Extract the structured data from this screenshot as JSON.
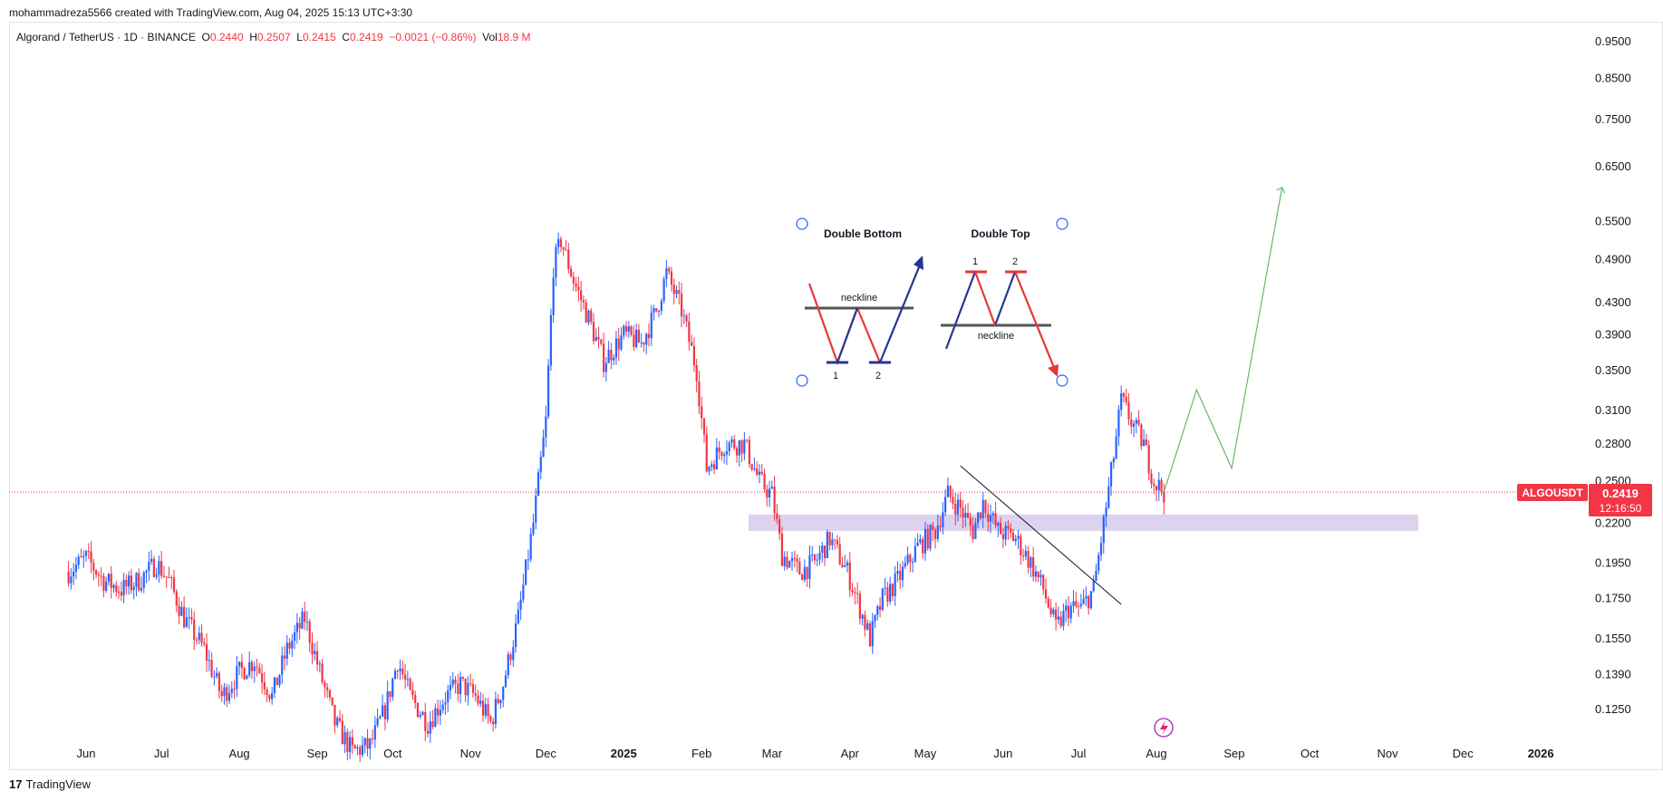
{
  "header": {
    "attribution": "mohammadreza5566 created with TradingView.com, Aug 04, 2025 15:13 UTC+3:30"
  },
  "symbol_bar": {
    "name": "Algorand / TetherUS · 1D · BINANCE",
    "o_label": "O",
    "o_value": "0.2440",
    "h_label": "H",
    "h_value": "0.2507",
    "l_label": "L",
    "l_value": "0.2415",
    "c_label": "C",
    "c_value": "0.2419",
    "change": "−0.0021 (−0.86%)",
    "vol_label": "Vol",
    "vol_value": "18.9 M"
  },
  "footer": {
    "brand": "TradingView",
    "brand_mark": "17"
  },
  "price_tag": {
    "symbol": "ALGOUSDT",
    "price": "0.2419",
    "countdown": "12:16:50"
  },
  "annotations": {
    "double_bottom": {
      "title": "Double Bottom",
      "neckline": "neckline",
      "p1": "1",
      "p2": "2"
    },
    "double_top": {
      "title": "Double Top",
      "neckline": "neckline",
      "p1": "1",
      "p2": "2"
    }
  },
  "colors": {
    "up": "#2962ff",
    "down": "#f23645",
    "zone": "#d1c4e9",
    "projection": "#66bb6a",
    "trendline": "#131722"
  },
  "chart_data": {
    "type": "candlestick",
    "scale": "log",
    "y_ticks": [
      "0.9500",
      "0.8500",
      "0.7500",
      "0.6500",
      "0.5500",
      "0.4900",
      "0.4300",
      "0.3900",
      "0.3500",
      "0.3100",
      "0.2800",
      "0.2500",
      "0.2200",
      "0.1950",
      "0.1750",
      "0.1550",
      "0.1390",
      "0.1250"
    ],
    "x_ticks": [
      "Jun",
      "Jul",
      "Aug",
      "Sep",
      "Oct",
      "Nov",
      "Dec",
      "2025",
      "Feb",
      "Mar",
      "Apr",
      "May",
      "Jun",
      "Jul",
      "Aug",
      "Sep",
      "Oct",
      "Nov",
      "Dec",
      "2026"
    ],
    "last_price": 0.2419,
    "support_zone": [
      0.215,
      0.226
    ],
    "price_path": [
      [
        "2024-05-25",
        0.19
      ],
      [
        "2024-06-01",
        0.198
      ],
      [
        "2024-06-08",
        0.185
      ],
      [
        "2024-06-15",
        0.18
      ],
      [
        "2024-06-22",
        0.185
      ],
      [
        "2024-06-29",
        0.195
      ],
      [
        "2024-07-04",
        0.185
      ],
      [
        "2024-07-10",
        0.165
      ],
      [
        "2024-07-18",
        0.15
      ],
      [
        "2024-07-25",
        0.13
      ],
      [
        "2024-08-01",
        0.14
      ],
      [
        "2024-08-07",
        0.145
      ],
      [
        "2024-08-14",
        0.13
      ],
      [
        "2024-08-20",
        0.15
      ],
      [
        "2024-08-27",
        0.165
      ],
      [
        "2024-09-02",
        0.14
      ],
      [
        "2024-09-08",
        0.12
      ],
      [
        "2024-09-15",
        0.11
      ],
      [
        "2024-09-22",
        0.112
      ],
      [
        "2024-09-28",
        0.125
      ],
      [
        "2024-10-03",
        0.145
      ],
      [
        "2024-10-08",
        0.13
      ],
      [
        "2024-10-15",
        0.12
      ],
      [
        "2024-10-22",
        0.13
      ],
      [
        "2024-10-28",
        0.135
      ],
      [
        "2024-11-03",
        0.13
      ],
      [
        "2024-11-09",
        0.12
      ],
      [
        "2024-11-14",
        0.135
      ],
      [
        "2024-11-20",
        0.165
      ],
      [
        "2024-11-26",
        0.22
      ],
      [
        "2024-12-01",
        0.3
      ],
      [
        "2024-12-04",
        0.48
      ],
      [
        "2024-12-07",
        0.52
      ],
      [
        "2024-12-12",
        0.46
      ],
      [
        "2024-12-18",
        0.41
      ],
      [
        "2024-12-24",
        0.36
      ],
      [
        "2025-01-01",
        0.39
      ],
      [
        "2025-01-08",
        0.38
      ],
      [
        "2025-01-14",
        0.42
      ],
      [
        "2025-01-18",
        0.47
      ],
      [
        "2025-01-24",
        0.42
      ],
      [
        "2025-01-30",
        0.35
      ],
      [
        "2025-02-03",
        0.26
      ],
      [
        "2025-02-10",
        0.28
      ],
      [
        "2025-02-18",
        0.28
      ],
      [
        "2025-02-24",
        0.25
      ],
      [
        "2025-03-01",
        0.24
      ],
      [
        "2025-03-05",
        0.2
      ],
      [
        "2025-03-12",
        0.19
      ],
      [
        "2025-03-18",
        0.195
      ],
      [
        "2025-03-24",
        0.21
      ],
      [
        "2025-03-31",
        0.19
      ],
      [
        "2025-04-05",
        0.17
      ],
      [
        "2025-04-09",
        0.155
      ],
      [
        "2025-04-14",
        0.175
      ],
      [
        "2025-04-20",
        0.185
      ],
      [
        "2025-04-28",
        0.205
      ],
      [
        "2025-05-05",
        0.215
      ],
      [
        "2025-05-10",
        0.24
      ],
      [
        "2025-05-15",
        0.23
      ],
      [
        "2025-05-20",
        0.215
      ],
      [
        "2025-05-24",
        0.235
      ],
      [
        "2025-05-30",
        0.215
      ],
      [
        "2025-06-06",
        0.21
      ],
      [
        "2025-06-12",
        0.195
      ],
      [
        "2025-06-17",
        0.18
      ],
      [
        "2025-06-22",
        0.16
      ],
      [
        "2025-06-27",
        0.17
      ],
      [
        "2025-07-02",
        0.17
      ],
      [
        "2025-07-07",
        0.18
      ],
      [
        "2025-07-11",
        0.22
      ],
      [
        "2025-07-15",
        0.27
      ],
      [
        "2025-07-18",
        0.32
      ],
      [
        "2025-07-22",
        0.3
      ],
      [
        "2025-07-27",
        0.28
      ],
      [
        "2025-07-31",
        0.25
      ],
      [
        "2025-08-04",
        0.2419
      ]
    ],
    "projection": [
      [
        "2025-08-04",
        0.2419
      ],
      [
        "2025-08-17",
        0.33
      ],
      [
        "2025-08-31",
        0.26
      ],
      [
        "2025-09-20",
        0.61
      ]
    ],
    "trendline": [
      [
        "2025-05-15",
        0.262
      ],
      [
        "2025-07-18",
        0.172
      ]
    ]
  }
}
